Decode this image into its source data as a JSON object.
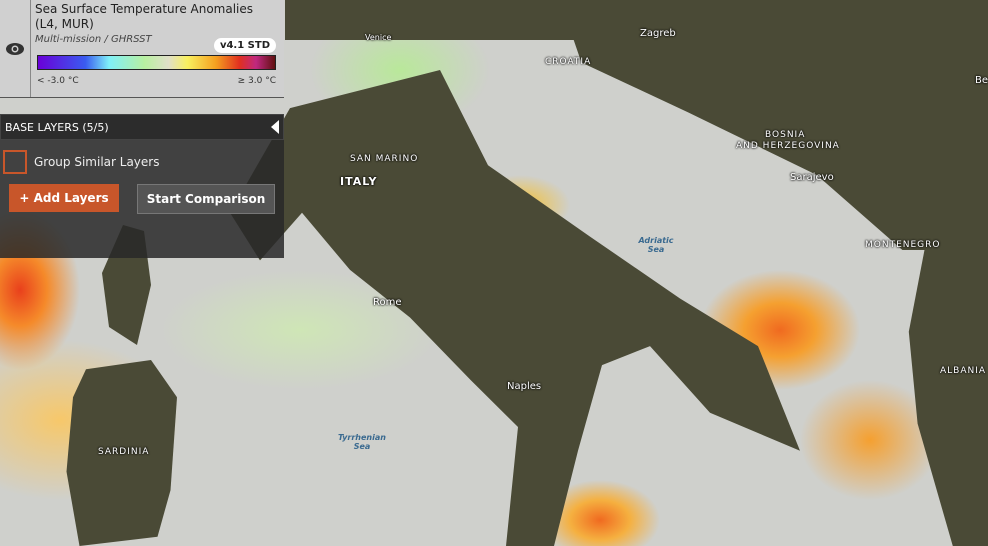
{
  "layer": {
    "title": "Sea Surface Temperature Anomalies (L4, MUR)",
    "subtitle": "Multi-mission / GHRSST",
    "version": "v4.1 STD",
    "legend_min": "< -3.0 °C",
    "legend_max": "≥ 3.0 °C",
    "icon": "eye-icon"
  },
  "base_layers": {
    "label": "BASE LAYERS (5/5)"
  },
  "group_similar": {
    "label": "Group Similar Layers",
    "checked": false
  },
  "buttons": {
    "add": "+ Add Layers",
    "compare": "Start Comparison"
  },
  "colors": {
    "accent": "#c8562a",
    "compare": "#555555"
  },
  "map": {
    "countries": [
      "CROATIA",
      "SAN MARINO",
      "ITALY",
      "BOSNIA",
      "AND HERZEGOVINA",
      "MONTENEGRO",
      "SARDINIA",
      "ALBANIA"
    ],
    "cities": [
      "Zagreb",
      "Venice",
      "Sarajevo",
      "Rome",
      "Naples",
      "Be"
    ],
    "seas": [
      "Adriatic Sea",
      "Tyrrhenian Sea"
    ]
  }
}
